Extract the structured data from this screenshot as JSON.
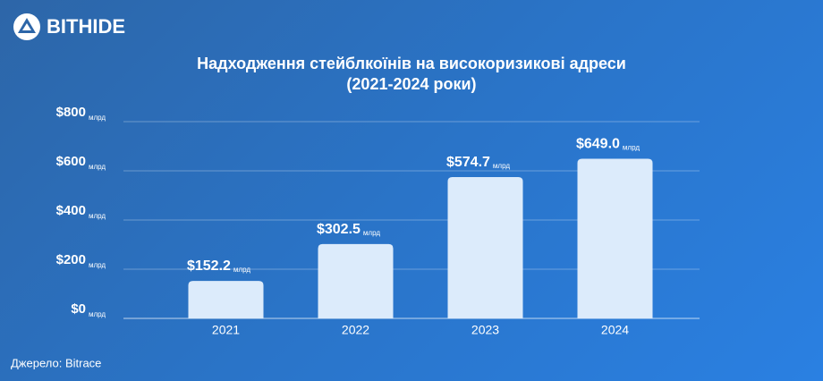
{
  "brand": "BITHIDE",
  "source": "Джерело: Bitrace",
  "chart_data": {
    "type": "bar",
    "title": "Надходження стейблкоїнів на високоризикові адреси (2021-2024 роки)",
    "unit": "млрд",
    "categories": [
      "2021",
      "2022",
      "2023",
      "2024"
    ],
    "values": [
      152.2,
      302.5,
      574.7,
      649.0
    ],
    "value_labels": [
      "$152.2",
      "$302.5",
      "$574.7",
      "$649.0"
    ],
    "color": "#dcebfb",
    "ylim": [
      0,
      800
    ],
    "yticks": [
      {
        "value": 0,
        "label": "$0"
      },
      {
        "value": 200,
        "label": "$200"
      },
      {
        "value": 400,
        "label": "$400"
      },
      {
        "value": 600,
        "label": "$600"
      },
      {
        "value": 800,
        "label": "$800"
      }
    ],
    "grid": true
  }
}
